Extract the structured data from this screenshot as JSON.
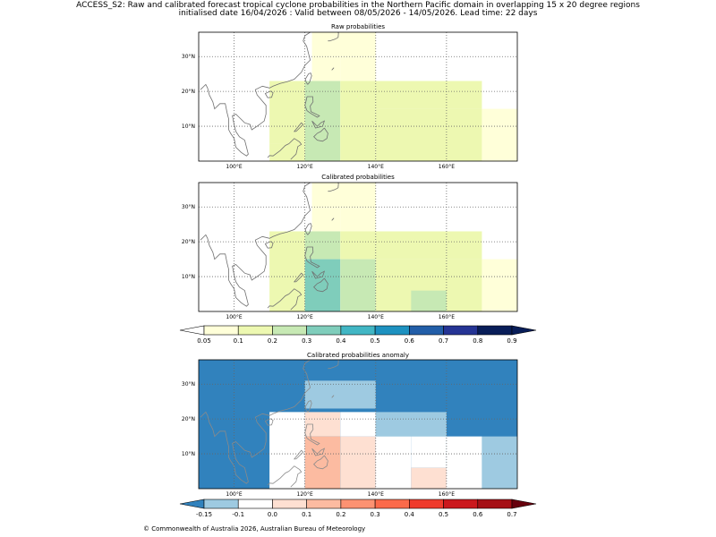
{
  "header": {
    "line1": "ACCESS_S2: Raw and calibrated forecast tropical cyclone probabilities in the Northern Pacific domain in overlapping 15 x 20 degree regions",
    "line2": "initialised date 16/04/2026 :  Valid between 08/05/2026 - 14/05/2026. Lead time: 22 days"
  },
  "footer": "© Commonwealth of Australia 2026, Australian Bureau of Meteorology",
  "colors": {
    "prob": [
      "#ffffd9",
      "#edf8b1",
      "#c7e9b4",
      "#7fcdbb",
      "#41b6c4",
      "#1d91c0",
      "#225ea8",
      "#253494",
      "#081d58"
    ],
    "prob_low": "#ffffff",
    "prob_high": "#081d58",
    "anom": [
      "#9ecae1",
      "#ffffff",
      "#fee0d2",
      "#fcbba1",
      "#fc9272",
      "#fb6a4a",
      "#ef3b2c",
      "#cb181d",
      "#a50f15"
    ],
    "anom_low": "#3182bd",
    "anom_high": "#67000d"
  },
  "chart_data": [
    {
      "type": "heatmap",
      "id": "raw",
      "title": "Raw probabilities",
      "xlim": [
        90,
        180
      ],
      "ylim": [
        0,
        37
      ],
      "xticks": [
        100,
        120,
        140,
        160
      ],
      "xtick_labels": [
        "100°E",
        "120°E",
        "140°E",
        "160°E"
      ],
      "yticks": [
        10,
        20,
        30
      ],
      "ytick_labels": [
        "10°N",
        "20°N",
        "30°N"
      ],
      "cells": [
        {
          "lon": [
            122,
            140
          ],
          "lat": [
            30,
            37
          ],
          "value": 0.07
        },
        {
          "lon": [
            122,
            130
          ],
          "lat": [
            23,
            30
          ],
          "value": 0.07
        },
        {
          "lon": [
            130,
            140
          ],
          "lat": [
            23,
            30
          ],
          "value": 0.07
        },
        {
          "lon": [
            110,
            120
          ],
          "lat": [
            5,
            23
          ],
          "value": 0.15
        },
        {
          "lon": [
            110,
            120
          ],
          "lat": [
            0,
            5
          ],
          "value": 0.15
        },
        {
          "lon": [
            120,
            130
          ],
          "lat": [
            0,
            23
          ],
          "value": 0.25
        },
        {
          "lon": [
            130,
            140
          ],
          "lat": [
            0,
            23
          ],
          "value": 0.15
        },
        {
          "lon": [
            140,
            170
          ],
          "lat": [
            15,
            23
          ],
          "value": 0.12
        },
        {
          "lon": [
            140,
            170
          ],
          "lat": [
            0,
            15
          ],
          "value": 0.15
        },
        {
          "lon": [
            170,
            180
          ],
          "lat": [
            0,
            15
          ],
          "value": 0.07
        }
      ]
    },
    {
      "type": "heatmap",
      "id": "cal",
      "title": "Calibrated probabilities",
      "xlim": [
        90,
        180
      ],
      "ylim": [
        0,
        37
      ],
      "xticks": [
        100,
        120,
        140,
        160
      ],
      "xtick_labels": [
        "100°E",
        "120°E",
        "140°E",
        "160°E"
      ],
      "yticks": [
        10,
        20,
        30
      ],
      "ytick_labels": [
        "10°N",
        "20°N",
        "30°N"
      ],
      "cells": [
        {
          "lon": [
            122,
            140
          ],
          "lat": [
            30,
            37
          ],
          "value": 0.07
        },
        {
          "lon": [
            122,
            130
          ],
          "lat": [
            23,
            30
          ],
          "value": 0.07
        },
        {
          "lon": [
            130,
            140
          ],
          "lat": [
            23,
            30
          ],
          "value": 0.07
        },
        {
          "lon": [
            110,
            120
          ],
          "lat": [
            0,
            23
          ],
          "value": 0.15
        },
        {
          "lon": [
            120,
            130
          ],
          "lat": [
            15,
            23
          ],
          "value": 0.25
        },
        {
          "lon": [
            120,
            130
          ],
          "lat": [
            0,
            15
          ],
          "value": 0.35
        },
        {
          "lon": [
            130,
            140
          ],
          "lat": [
            15,
            23
          ],
          "value": 0.15
        },
        {
          "lon": [
            130,
            140
          ],
          "lat": [
            0,
            15
          ],
          "value": 0.25
        },
        {
          "lon": [
            140,
            160
          ],
          "lat": [
            15,
            23
          ],
          "value": 0.12
        },
        {
          "lon": [
            140,
            170
          ],
          "lat": [
            0,
            15
          ],
          "value": 0.15
        },
        {
          "lon": [
            150,
            160
          ],
          "lat": [
            0,
            6
          ],
          "value": 0.25
        },
        {
          "lon": [
            160,
            170
          ],
          "lat": [
            15,
            23
          ],
          "value": 0.15
        },
        {
          "lon": [
            170,
            180
          ],
          "lat": [
            0,
            15
          ],
          "value": 0.07
        }
      ]
    },
    {
      "type": "heatmap",
      "id": "anom",
      "title": "Calibrated probabilities anomaly",
      "xlim": [
        90,
        180
      ],
      "ylim": [
        0,
        37
      ],
      "xticks": [
        100,
        120,
        140,
        160
      ],
      "xtick_labels": [
        "100°E",
        "120°E",
        "140°E",
        "160°E"
      ],
      "yticks": [
        10,
        20,
        30
      ],
      "ytick_labels": [
        "10°N",
        "20°N",
        "30°N"
      ],
      "background_value": -0.2,
      "cells": [
        {
          "lon": [
            120,
            140
          ],
          "lat": [
            23,
            31
          ],
          "value": -0.12
        },
        {
          "lon": [
            110,
            120
          ],
          "lat": [
            0,
            22
          ],
          "value": -0.05
        },
        {
          "lon": [
            120,
            130
          ],
          "lat": [
            15,
            22
          ],
          "value": 0.05
        },
        {
          "lon": [
            120,
            130
          ],
          "lat": [
            0,
            15
          ],
          "value": 0.15
        },
        {
          "lon": [
            130,
            140
          ],
          "lat": [
            0,
            15
          ],
          "value": 0.05
        },
        {
          "lon": [
            130,
            140
          ],
          "lat": [
            15,
            22
          ],
          "value": -0.05
        },
        {
          "lon": [
            140,
            160
          ],
          "lat": [
            15,
            22
          ],
          "value": -0.12
        },
        {
          "lon": [
            140,
            150
          ],
          "lat": [
            0,
            15
          ],
          "value": -0.05
        },
        {
          "lon": [
            150,
            160
          ],
          "lat": [
            6,
            15
          ],
          "value": -0.05
        },
        {
          "lon": [
            150,
            160
          ],
          "lat": [
            0,
            6
          ],
          "value": 0.05
        },
        {
          "lon": [
            160,
            170
          ],
          "lat": [
            0,
            15
          ],
          "value": -0.05
        },
        {
          "lon": [
            170,
            180
          ],
          "lat": [
            0,
            15
          ],
          "value": -0.12
        }
      ]
    }
  ],
  "colorbars": {
    "prob": {
      "labels": [
        "0.05",
        "0.1",
        "0.2",
        "0.3",
        "0.4",
        "0.5",
        "0.6",
        "0.7",
        "0.8",
        "0.9"
      ]
    },
    "anom": {
      "labels": [
        "-0.15",
        "-0.1",
        "0.0",
        "0.1",
        "0.2",
        "0.3",
        "0.4",
        "0.5",
        "0.6",
        "0.7"
      ]
    }
  },
  "coast": [
    [
      [
        90.5,
        20.5
      ],
      [
        92,
        22
      ],
      [
        92.5,
        21
      ],
      [
        93,
        19
      ],
      [
        94,
        17
      ],
      [
        94.5,
        15
      ],
      [
        96,
        16.5
      ],
      [
        97.5,
        16.5
      ],
      [
        98,
        14
      ],
      [
        98.5,
        12
      ],
      [
        98.5,
        9
      ],
      [
        99,
        8
      ],
      [
        100,
        6.5
      ],
      [
        100.5,
        4
      ],
      [
        102,
        2.5
      ],
      [
        103.5,
        1.5
      ],
      [
        104,
        2
      ],
      [
        103.5,
        4
      ],
      [
        103,
        6
      ],
      [
        101.5,
        7
      ],
      [
        100.5,
        8.5
      ],
      [
        100,
        10.5
      ],
      [
        99.5,
        13
      ],
      [
        100.5,
        13.5
      ],
      [
        101.5,
        12.5
      ],
      [
        103,
        11
      ],
      [
        104.5,
        10.5
      ],
      [
        105,
        9
      ],
      [
        106.5,
        10
      ],
      [
        108.5,
        11.5
      ],
      [
        109,
        13.5
      ],
      [
        109,
        16
      ],
      [
        106.5,
        19
      ],
      [
        106,
        20.5
      ],
      [
        108,
        21.5
      ],
      [
        110,
        21
      ],
      [
        111,
        21.5
      ],
      [
        113,
        22.3
      ],
      [
        115,
        22.8
      ],
      [
        117,
        23.5
      ],
      [
        119,
        25.5
      ],
      [
        120,
        27.5
      ],
      [
        121.5,
        29
      ],
      [
        121,
        31
      ],
      [
        120.5,
        33
      ],
      [
        119.5,
        34.5
      ],
      [
        120,
        36
      ],
      [
        121.5,
        37
      ]
    ],
    [
      [
        120.8,
        22.0
      ],
      [
        121.3,
        22.6
      ],
      [
        121.9,
        24.5
      ],
      [
        121.6,
        25.3
      ],
      [
        121.0,
        25.0
      ],
      [
        120.1,
        23.5
      ],
      [
        120.4,
        22.6
      ],
      [
        120.8,
        22.0
      ]
    ],
    [
      [
        109.5,
        18.2
      ],
      [
        110.6,
        18.3
      ],
      [
        111.0,
        19.6
      ],
      [
        110.3,
        20.1
      ],
      [
        108.8,
        19.4
      ],
      [
        109.5,
        18.2
      ]
    ],
    [
      [
        120.6,
        18.5
      ],
      [
        122.2,
        18.5
      ],
      [
        122.3,
        17.0
      ],
      [
        121.5,
        15.8
      ],
      [
        121.7,
        14.2
      ],
      [
        124.1,
        13.0
      ],
      [
        123.5,
        12.6
      ],
      [
        121.5,
        13.8
      ],
      [
        120.6,
        14.5
      ],
      [
        120.0,
        16.0
      ],
      [
        120.4,
        17.5
      ],
      [
        120.6,
        18.5
      ]
    ],
    [
      [
        122.0,
        11.5
      ],
      [
        123.5,
        10.0
      ],
      [
        124.5,
        11.0
      ],
      [
        125.5,
        11.5
      ],
      [
        125.0,
        10.0
      ],
      [
        123.0,
        9.5
      ],
      [
        122.0,
        11.5
      ]
    ],
    [
      [
        125.5,
        9.5
      ],
      [
        126.5,
        8.0
      ],
      [
        126.2,
        6.5
      ],
      [
        125.0,
        5.7
      ],
      [
        123.5,
        6.0
      ],
      [
        122.5,
        7.0
      ],
      [
        123.5,
        8.0
      ],
      [
        124.5,
        8.5
      ],
      [
        125.5,
        9.5
      ]
    ],
    [
      [
        117.5,
        8.5
      ],
      [
        119.5,
        10.5
      ],
      [
        119.0,
        11.0
      ],
      [
        117.0,
        8.5
      ],
      [
        117.5,
        8.5
      ]
    ],
    [
      [
        126.5,
        34.5
      ],
      [
        127.0,
        34.5
      ],
      [
        128.5,
        35.0
      ],
      [
        129.4,
        35.5
      ],
      [
        129.5,
        36.8
      ],
      [
        129.3,
        37.0
      ]
    ],
    [
      [
        127.6,
        26.1
      ],
      [
        128.2,
        26.8
      ],
      [
        127.9,
        26.5
      ],
      [
        127.6,
        26.1
      ]
    ],
    [
      [
        115.5,
        5.0
      ],
      [
        117.0,
        6.5
      ],
      [
        118.5,
        5.5
      ],
      [
        119.0,
        4.8
      ],
      [
        118.0,
        4.2
      ],
      [
        117.5,
        2.0
      ],
      [
        116.0,
        0.5
      ]
    ],
    [
      [
        109.5,
        1.0
      ],
      [
        110.0,
        1.6
      ],
      [
        111.0,
        1.5
      ],
      [
        113.0,
        3.0
      ],
      [
        114.5,
        4.5
      ],
      [
        115.5,
        5.0
      ]
    ]
  ]
}
